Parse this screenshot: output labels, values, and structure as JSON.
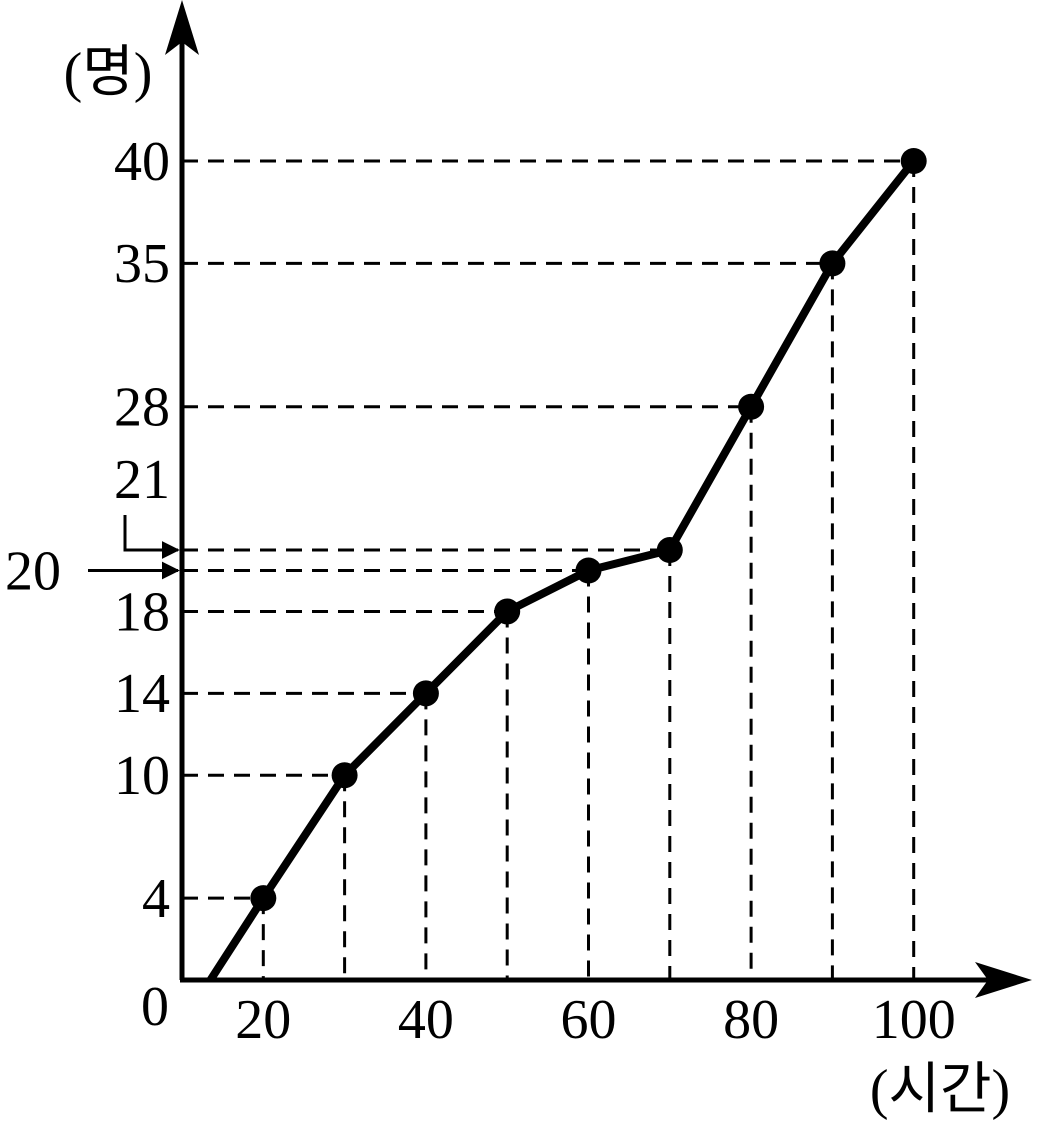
{
  "chart_data": {
    "type": "line",
    "x": [
      13.5,
      20,
      30,
      40,
      50,
      60,
      70,
      80,
      90,
      100
    ],
    "values": [
      0,
      4,
      10,
      14,
      18,
      20,
      21,
      28,
      35,
      40
    ],
    "color": "#000000",
    "xlim": [
      10,
      114.5
    ],
    "ylim": [
      0,
      47.5
    ],
    "xticks": [
      20,
      40,
      60,
      80,
      100
    ],
    "yticks": [
      4,
      10,
      14,
      18,
      20,
      21,
      28,
      35,
      40
    ],
    "origin_label": "0",
    "x_label": "(시간)",
    "y_label": "(명)",
    "markers": true
  }
}
